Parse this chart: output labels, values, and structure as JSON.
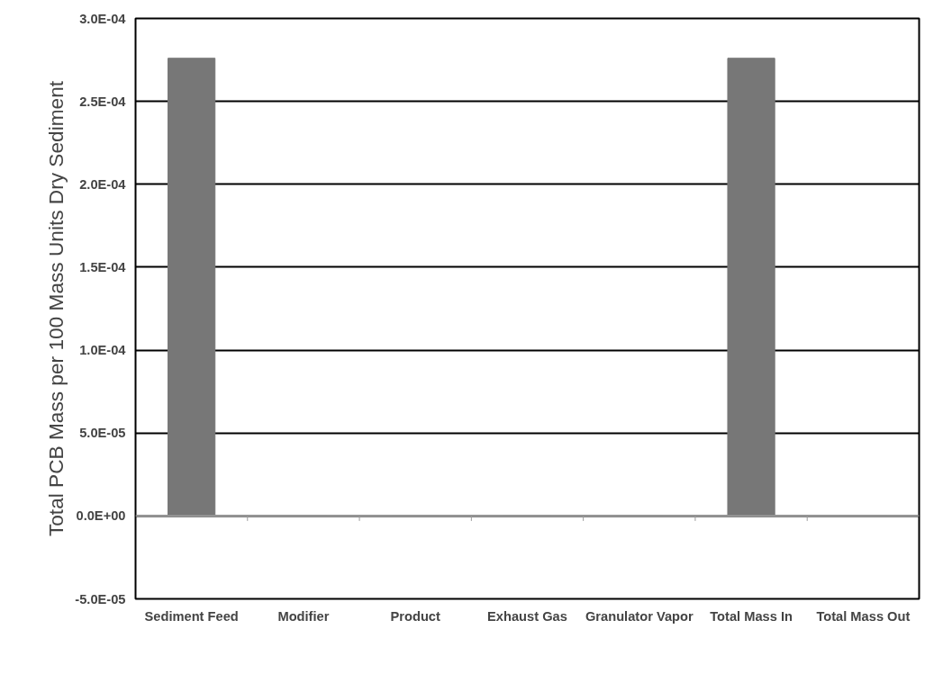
{
  "chart_data": {
    "type": "bar",
    "ylabel": "Total PCB Mass per 100 Mass Units Dry Sediment",
    "categories": [
      "Sediment Feed",
      "Modifier",
      "Product",
      "Exhaust Gas",
      "Granulator Vapor",
      "Total Mass In",
      "Total Mass Out"
    ],
    "values": [
      0.000276,
      0,
      0,
      0,
      0,
      0.000276,
      0
    ],
    "color": "#777777",
    "ylim": [
      -5e-05,
      0.0003
    ],
    "yticks": [
      {
        "value": -5e-05,
        "label": "-5.0E-05"
      },
      {
        "value": 0,
        "label": "0.0E+00"
      },
      {
        "value": 5e-05,
        "label": "5.0E-05"
      },
      {
        "value": 0.0001,
        "label": "1.0E-04"
      },
      {
        "value": 0.00015,
        "label": "1.5E-04"
      },
      {
        "value": 0.0002,
        "label": "2.0E-04"
      },
      {
        "value": 0.00025,
        "label": "2.5E-04"
      },
      {
        "value": 0.0003,
        "label": "3.0E-04"
      }
    ],
    "grid": "y"
  }
}
